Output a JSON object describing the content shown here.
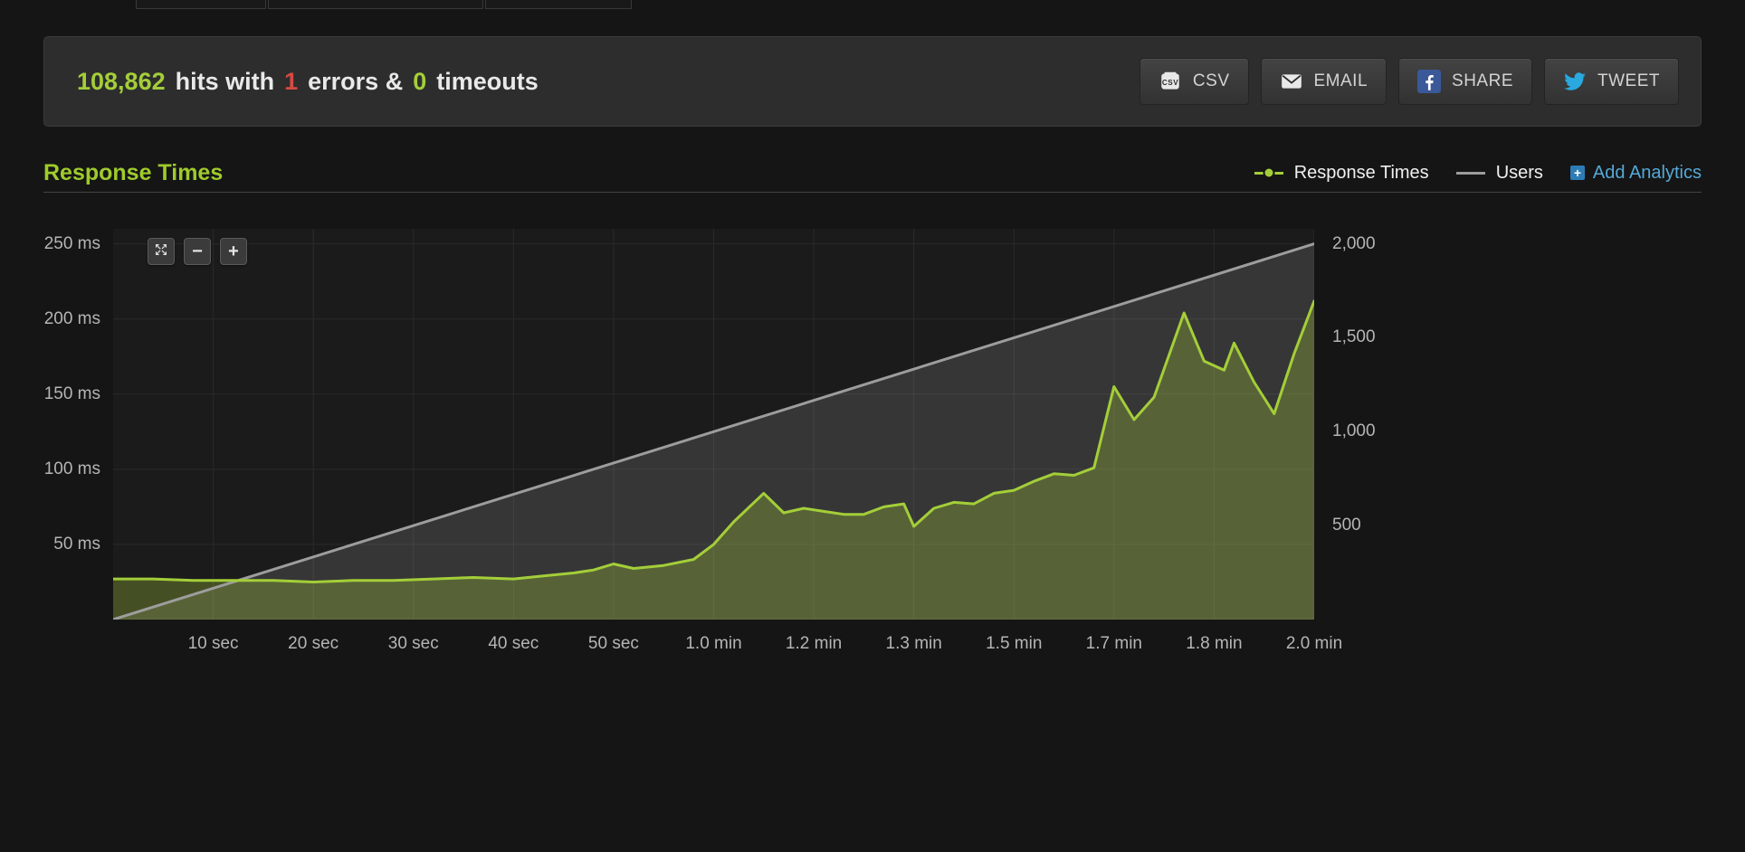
{
  "stats": {
    "hits": "108,862",
    "hits_label": "hits with",
    "errors": "1",
    "errors_label": "errors &",
    "timeouts": "0",
    "timeouts_label": "timeouts"
  },
  "toolbar": {
    "buttons": [
      {
        "label": "CSV",
        "icon": "csv-file-icon"
      },
      {
        "label": "EMAIL",
        "icon": "envelope-icon"
      },
      {
        "label": "SHARE",
        "icon": "facebook-icon"
      },
      {
        "label": "TWEET",
        "icon": "twitter-icon"
      }
    ]
  },
  "section": {
    "title": "Response Times"
  },
  "legend": {
    "items": [
      {
        "label": "Response Times",
        "marker": "line-dot",
        "color": "#a4ce39"
      },
      {
        "label": "Users",
        "marker": "line",
        "color": "#9d9d9d"
      }
    ],
    "add_analytics": {
      "label": "Add Analytics",
      "plus": "+",
      "icon": "plus-box-icon",
      "color": "#55a9d8"
    }
  },
  "chart_controls": {
    "zoom_reset_icon": "expand-arrows-icon",
    "zoom_out": "−",
    "zoom_in": "+"
  },
  "colors": {
    "accent_green": "#a4ce39",
    "error_red": "#d54a42",
    "link_blue": "#55a9d8",
    "users_gray": "#9d9d9d",
    "panel_bg": "#2d2d2d",
    "page_bg": "#151515"
  },
  "chart_data": {
    "type": "line",
    "title": "Response Times",
    "x_unit": "seconds",
    "x_range": [
      0,
      120
    ],
    "plot_bg": "#1b1b1b",
    "grid_color": "#2a2a2a",
    "legend_position": "top-right",
    "x_ticks": [
      {
        "t": 10,
        "label": "10 sec"
      },
      {
        "t": 20,
        "label": "20 sec"
      },
      {
        "t": 30,
        "label": "30 sec"
      },
      {
        "t": 40,
        "label": "40 sec"
      },
      {
        "t": 50,
        "label": "50 sec"
      },
      {
        "t": 60,
        "label": "1.0 min"
      },
      {
        "t": 70,
        "label": "1.2 min"
      },
      {
        "t": 80,
        "label": "1.3 min"
      },
      {
        "t": 90,
        "label": "1.5 min"
      },
      {
        "t": 100,
        "label": "1.7 min"
      },
      {
        "t": 110,
        "label": "1.8 min"
      },
      {
        "t": 120,
        "label": "2.0 min"
      }
    ],
    "y_left": {
      "unit": "ms",
      "max": 260,
      "ticks": [
        {
          "v": 50,
          "label": "50 ms"
        },
        {
          "v": 100,
          "label": "100 ms"
        },
        {
          "v": 150,
          "label": "150 ms"
        },
        {
          "v": 200,
          "label": "200 ms"
        },
        {
          "v": 250,
          "label": "250 ms"
        }
      ]
    },
    "y_right": {
      "unit": "users",
      "max": 2080,
      "ticks": [
        {
          "v": 500,
          "label": "500"
        },
        {
          "v": 1000,
          "label": "1,000"
        },
        {
          "v": 1500,
          "label": "1,500"
        },
        {
          "v": 2000,
          "label": "2,000"
        }
      ]
    },
    "series": [
      {
        "name": "Users",
        "axis": "right",
        "color": "#9d9d9d",
        "fill": "rgba(255,255,255,0.12)",
        "x": [
          0,
          120
        ],
        "y": [
          0,
          2000
        ]
      },
      {
        "name": "Response Times",
        "axis": "left",
        "color": "#a4ce39",
        "fill": "rgba(164,206,57,0.30)",
        "x": [
          0,
          4,
          8,
          12,
          16,
          20,
          24,
          28,
          32,
          36,
          40,
          43,
          46,
          48,
          50,
          52,
          55,
          58,
          60,
          62,
          65,
          67,
          69,
          71,
          73,
          75,
          77,
          79,
          80,
          82,
          84,
          86,
          88,
          90,
          92,
          94,
          96,
          98,
          100,
          102,
          104,
          107,
          109,
          111,
          112,
          114,
          116,
          118,
          120
        ],
        "y": [
          27,
          27,
          26,
          26,
          26,
          25,
          26,
          26,
          27,
          28,
          27,
          29,
          31,
          33,
          37,
          34,
          36,
          40,
          50,
          65,
          84,
          71,
          74,
          72,
          70,
          70,
          75,
          77,
          62,
          74,
          78,
          77,
          84,
          86,
          92,
          97,
          96,
          101,
          155,
          133,
          148,
          204,
          172,
          166,
          184,
          158,
          137,
          177,
          212
        ]
      }
    ]
  }
}
